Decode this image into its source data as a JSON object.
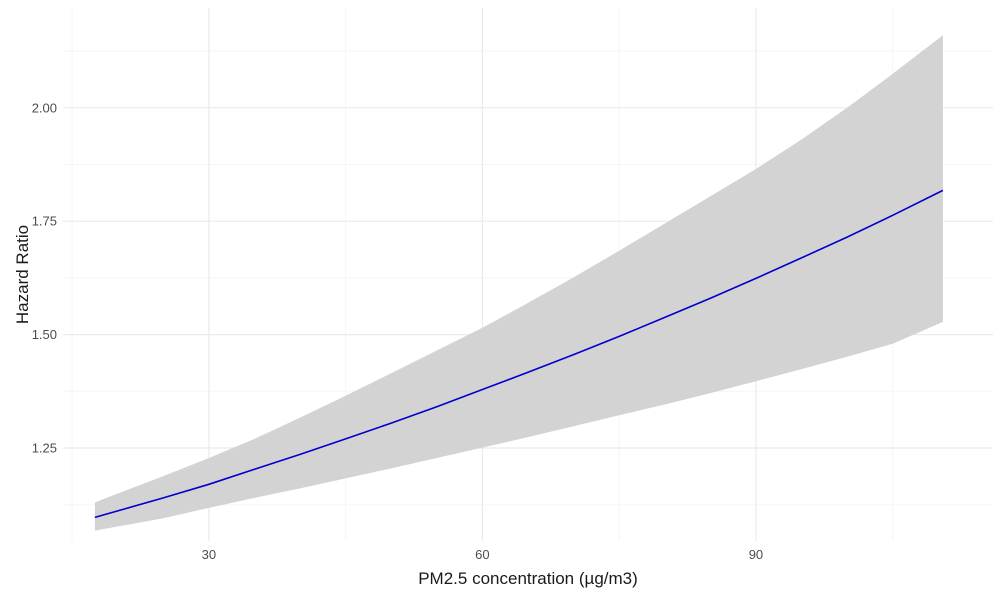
{
  "chart_data": {
    "type": "line",
    "title": "",
    "xlabel": "PM2.5 concentration (µg/m3)",
    "ylabel": "Hazard Ratio",
    "xlim": [
      14.0,
      116.0
    ],
    "ylim": [
      1.045,
      2.22
    ],
    "x_ticks": [
      30,
      60,
      90
    ],
    "x_tick_labels": [
      "30",
      "60",
      "90"
    ],
    "y_ticks": [
      1.25,
      1.5,
      1.75,
      2.0
    ],
    "y_tick_labels": [
      "1.25",
      "1.50",
      "1.75",
      "2.00"
    ],
    "grid": true,
    "legend": "none",
    "series": [
      {
        "x": [
          17.5,
          25,
          30,
          35,
          40,
          45,
          50,
          55,
          60,
          65,
          70,
          75,
          80,
          85,
          90,
          95,
          100,
          105,
          110.5
        ],
        "y": [
          1.097,
          1.14,
          1.17,
          1.203,
          1.236,
          1.27,
          1.305,
          1.341,
          1.379,
          1.417,
          1.456,
          1.496,
          1.538,
          1.58,
          1.624,
          1.669,
          1.715,
          1.763,
          1.818
        ],
        "color": "#0000cc"
      }
    ],
    "confidence_band": {
      "x": [
        17.5,
        25,
        30,
        35,
        40,
        45,
        50,
        55,
        60,
        65,
        70,
        75,
        80,
        85,
        90,
        95,
        100,
        105,
        110.5
      ],
      "lower": [
        1.068,
        1.095,
        1.118,
        1.14,
        1.161,
        1.183,
        1.205,
        1.228,
        1.251,
        1.274,
        1.298,
        1.322,
        1.346,
        1.371,
        1.397,
        1.424,
        1.451,
        1.48,
        1.528
      ],
      "upper": [
        1.13,
        1.188,
        1.228,
        1.27,
        1.317,
        1.365,
        1.415,
        1.465,
        1.515,
        1.57,
        1.626,
        1.685,
        1.745,
        1.805,
        1.865,
        1.93,
        2.0,
        2.075,
        2.16
      ],
      "color": "#d3d3d3"
    },
    "colors": {
      "background": "#ffffff",
      "grid_major": "#ebebeb",
      "grid_minor": "#f5f5f5",
      "line": "#0000cc",
      "band": "#d3d3d3"
    }
  }
}
